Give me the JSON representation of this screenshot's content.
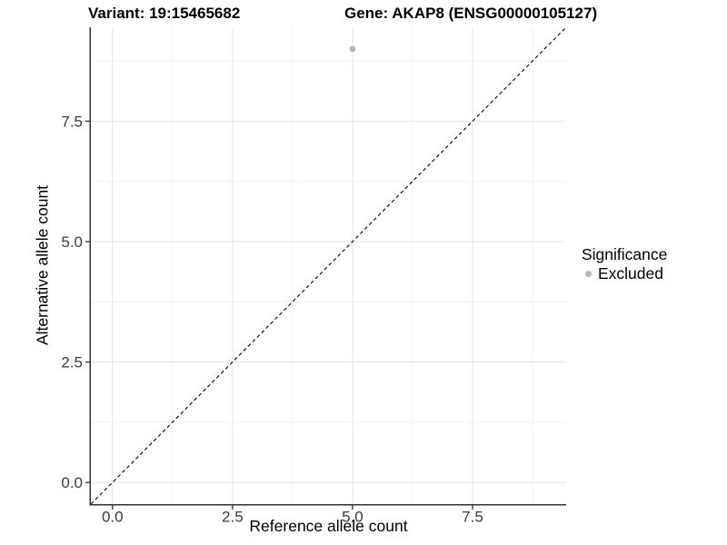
{
  "titles": {
    "variant": "Variant: 19:15465682",
    "gene": "Gene: AKAP8 (ENSG00000105127)"
  },
  "chart_data": {
    "type": "scatter",
    "title_left": "Variant: 19:15465682",
    "title_right": "Gene: AKAP8 (ENSG00000105127)",
    "xlabel": "Reference allele count",
    "ylabel": "Alternative allele count",
    "xlim": [
      -0.45,
      9.45
    ],
    "ylim": [
      -0.45,
      9.45
    ],
    "xticks": [
      {
        "value": 0,
        "label": "0.0"
      },
      {
        "value": 2.5,
        "label": "2.5"
      },
      {
        "value": 5,
        "label": "5.0"
      },
      {
        "value": 7.5,
        "label": "7.5"
      }
    ],
    "yticks": [
      {
        "value": 0,
        "label": "0.0"
      },
      {
        "value": 2.5,
        "label": "2.5"
      },
      {
        "value": 5,
        "label": "5.0"
      },
      {
        "value": 7.5,
        "label": "7.5"
      }
    ],
    "minor_xticks": [
      1.25,
      3.75,
      6.25,
      8.75
    ],
    "minor_yticks": [
      1.25,
      3.75,
      6.25,
      8.75
    ],
    "grid": true,
    "series": [
      {
        "name": "Excluded",
        "color": "#b5b5b5",
        "marker": "circle",
        "points": [
          {
            "x": 5,
            "y": 9
          }
        ]
      }
    ],
    "reference_line": {
      "slope": 1,
      "intercept": 0,
      "style": "dashed",
      "color": "#000000"
    },
    "legend_position": "right"
  },
  "legend": {
    "title": "Significance",
    "entries": [
      {
        "label": "Excluded",
        "color": "#b5b5b5",
        "marker": "circle-icon"
      }
    ]
  },
  "colors": {
    "background": "#ffffff",
    "grid_major": "#e4e4e4",
    "grid_minor": "#f1f1f1",
    "axis_line": "#333333",
    "tick_mark": "#333333",
    "tick_label": "#3c3c3c",
    "point": "#b5b5b5",
    "text": "#000000"
  }
}
